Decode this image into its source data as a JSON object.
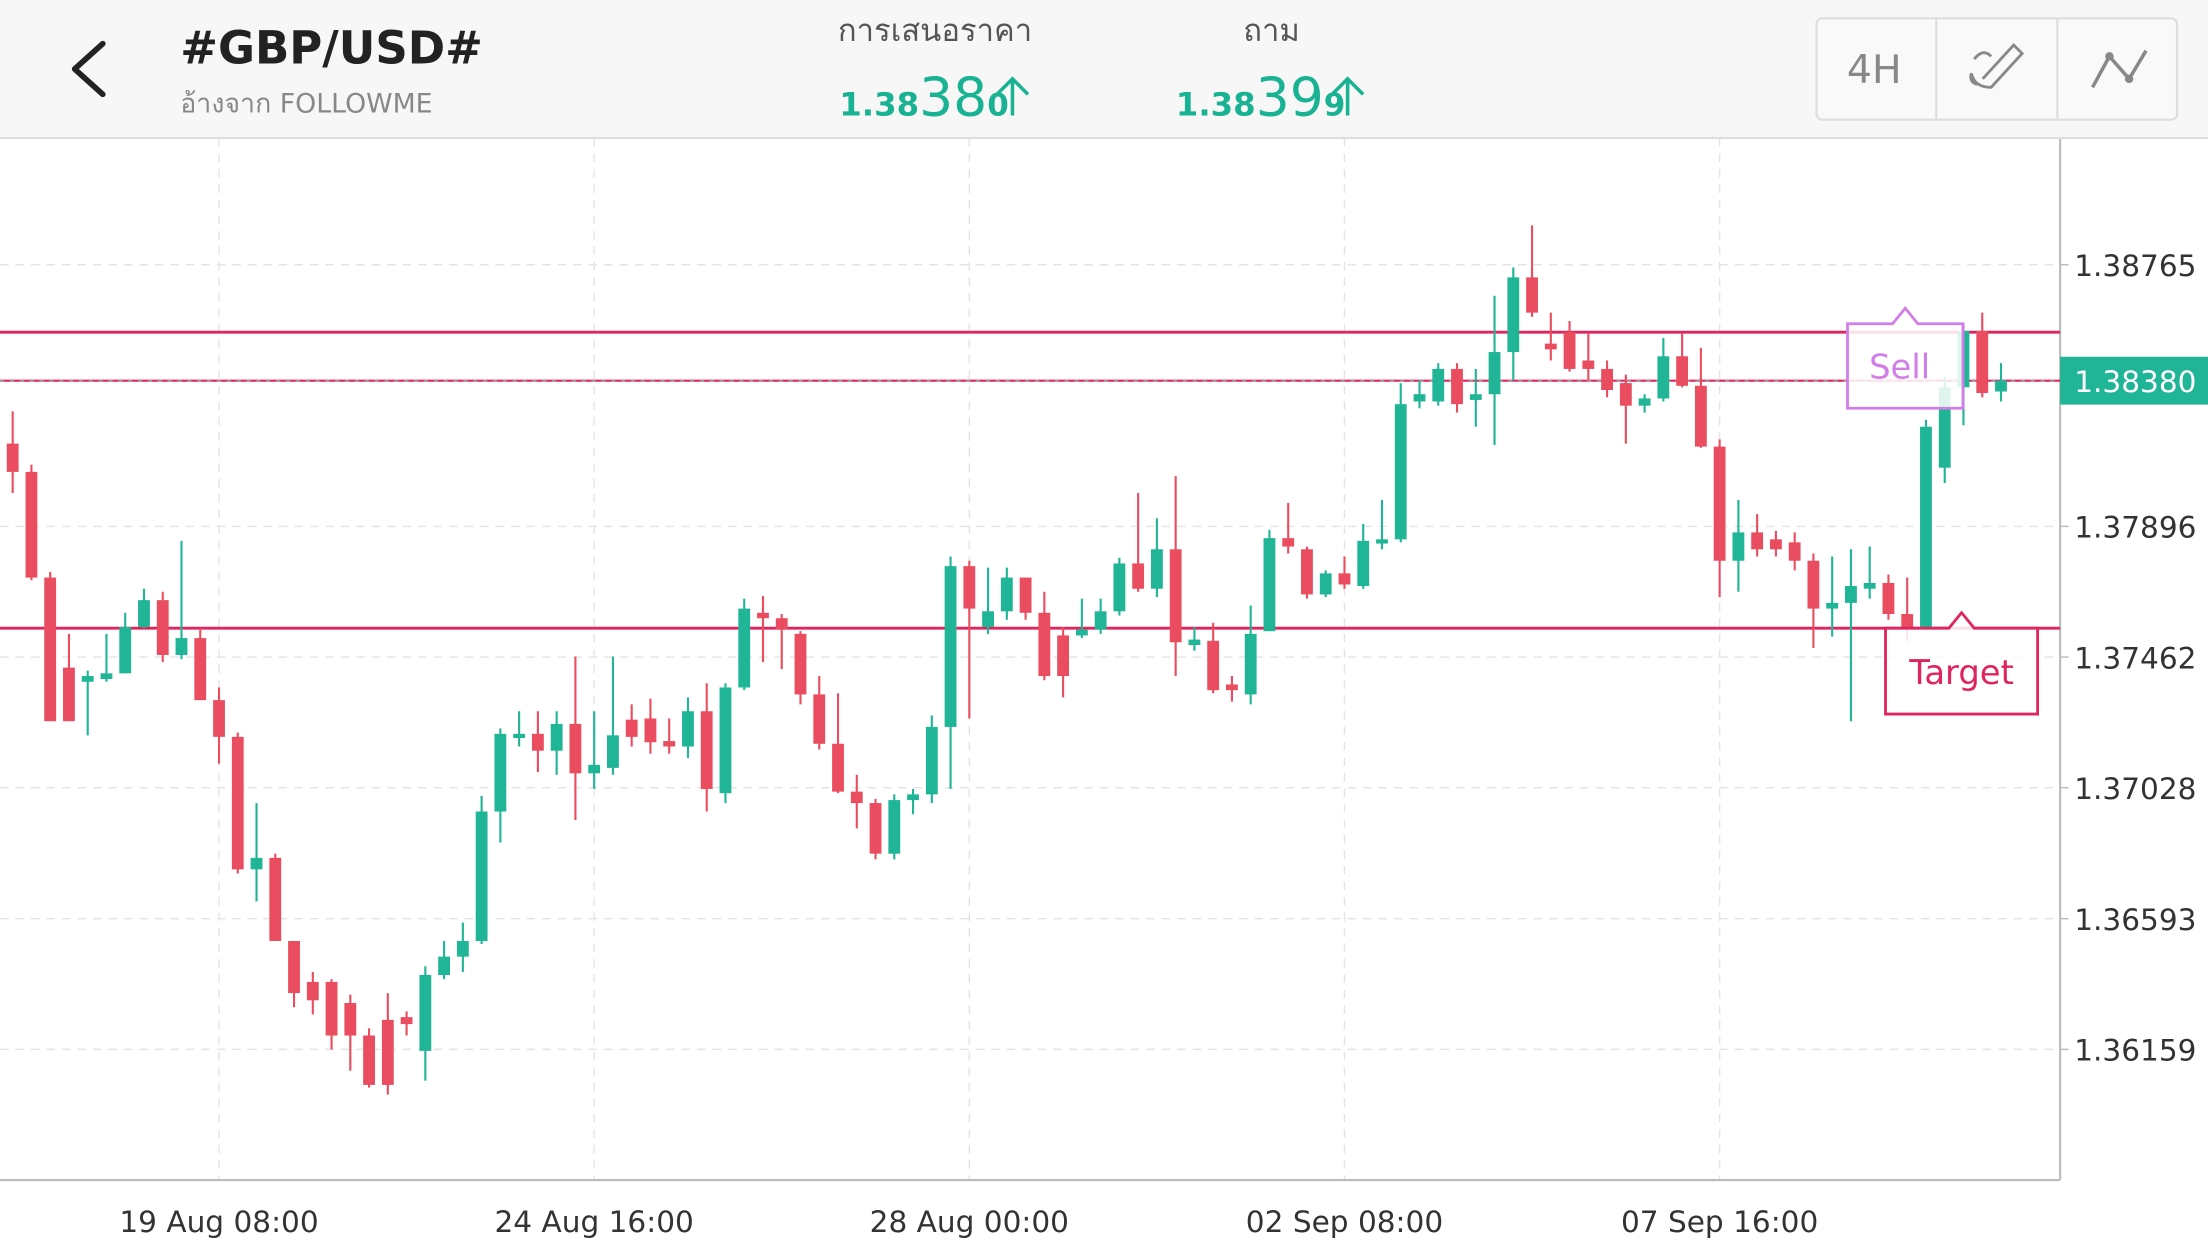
{
  "header": {
    "title": "#GBP/USD#",
    "subtitle": "อ้างจาก FOLLOWME",
    "bid": {
      "label": "การเสนอราคา",
      "price": [
        "1.38",
        "38",
        "0"
      ]
    },
    "ask": {
      "label": "ถาม",
      "price": [
        "1.38",
        "39",
        "9"
      ]
    },
    "timeframe": "4H"
  },
  "chart_data": {
    "type": "candlestick",
    "categories": [
      null,
      null,
      null,
      null,
      null,
      null,
      null,
      null,
      null,
      null,
      null,
      "19 Aug 08:00",
      null,
      null,
      null,
      null,
      null,
      null,
      null,
      null,
      null,
      null,
      null,
      null,
      null,
      null,
      null,
      null,
      null,
      null,
      null,
      "24 Aug 16:00",
      null,
      null,
      null,
      null,
      null,
      null,
      null,
      null,
      null,
      null,
      null,
      null,
      null,
      null,
      null,
      null,
      null,
      null,
      null,
      "28 Aug 00:00",
      null,
      null,
      null,
      null,
      null,
      null,
      null,
      null,
      null,
      null,
      null,
      null,
      null,
      null,
      null,
      null,
      null,
      null,
      null,
      "02 Sep 08:00",
      null,
      null,
      null,
      null,
      null,
      null,
      null,
      null,
      null,
      null,
      null,
      null,
      null,
      null,
      null,
      null,
      null,
      null,
      null,
      "07 Sep 16:00",
      null,
      null,
      null,
      null,
      null,
      null,
      null,
      null,
      null,
      null,
      null,
      null,
      null,
      null,
      null
    ],
    "open": [
      1.38171,
      1.38077,
      1.37726,
      1.37427,
      1.3738,
      1.37389,
      1.37408,
      1.37562,
      1.37651,
      1.37469,
      1.37525,
      1.37319,
      1.37197,
      1.36757,
      1.36795,
      1.36519,
      1.36383,
      1.36383,
      1.36313,
      1.36205,
      1.36257,
      1.36266,
      1.36154,
      1.36406,
      1.36467,
      1.36519,
      1.36949,
      1.37193,
      1.37207,
      1.37151,
      1.3724,
      1.37076,
      1.37094,
      1.37254,
      1.37258,
      1.37183,
      1.37165,
      1.37282,
      1.3701,
      1.37361,
      1.37609,
      1.37591,
      1.37539,
      1.37338,
      1.37174,
      1.37015,
      1.36977,
      1.36809,
      1.36987,
      1.37006,
      1.3723,
      1.37764,
      1.37562,
      1.37614,
      1.37726,
      1.37609,
      1.37534,
      1.37534,
      1.37553,
      1.37614,
      1.37773,
      1.37689,
      1.3782,
      1.37502,
      1.37516,
      1.37371,
      1.37338,
      1.37548,
      1.37857,
      1.3782,
      1.3767,
      1.3774,
      1.37698,
      1.37839,
      1.37853,
      1.38311,
      1.38311,
      1.38419,
      1.38316,
      1.38335,
      1.38475,
      1.38723,
      1.38503,
      1.38541,
      1.38447,
      1.38419,
      1.38372,
      1.38297,
      1.38321,
      1.38461,
      1.38363,
      1.38161,
      1.37782,
      1.37876,
      1.37853,
      1.37843,
      1.37782,
      1.37623,
      1.37642,
      1.37689,
      1.37708,
      1.37605,
      1.37558,
      1.38091,
      1.38358,
      1.38545,
      1.38344
    ],
    "high": [
      1.38278,
      1.38101,
      1.37745,
      1.37539,
      1.37417,
      1.37539,
      1.37609,
      1.37689,
      1.37679,
      1.37848,
      1.37558,
      1.37361,
      1.37211,
      1.36977,
      1.36809,
      1.36519,
      1.36416,
      1.36392,
      1.36341,
      1.36229,
      1.36346,
      1.36285,
      1.36435,
      1.36519,
      1.3658,
      1.37001,
      1.37225,
      1.37282,
      1.37282,
      1.37282,
      1.37464,
      1.37282,
      1.37464,
      1.37305,
      1.37324,
      1.37258,
      1.37328,
      1.37375,
      1.37375,
      1.37656,
      1.37665,
      1.37605,
      1.37548,
      1.37399,
      1.37342,
      1.37071,
      1.36991,
      1.37006,
      1.37024,
      1.37268,
      1.37796,
      1.37782,
      1.37759,
      1.37759,
      1.37726,
      1.37679,
      1.37562,
      1.37656,
      1.37656,
      1.37792,
      1.38007,
      1.37923,
      1.38063,
      1.37562,
      1.37576,
      1.37399,
      1.37633,
      1.37885,
      1.37974,
      1.37829,
      1.3775,
      1.37796,
      1.37904,
      1.37984,
      1.38372,
      1.38381,
      1.38438,
      1.38438,
      1.38419,
      1.38662,
      1.38756,
      1.38896,
      1.38606,
      1.38578,
      1.38536,
      1.38447,
      1.384,
      1.38335,
      1.38522,
      1.38536,
      1.38489,
      1.38185,
      1.37984,
      1.37937,
      1.37881,
      1.37876,
      1.37806,
      1.37796,
      1.3782,
      1.37829,
      1.37736,
      1.37726,
      1.3825,
      1.38391,
      1.38569,
      1.38606,
      1.38438
    ],
    "low": [
      1.38007,
      1.37717,
      1.37249,
      1.37249,
      1.37202,
      1.3738,
      1.37408,
      1.37558,
      1.37445,
      1.37455,
      1.37319,
      1.37108,
      1.36743,
      1.3665,
      1.36519,
      1.36299,
      1.36275,
      1.36158,
      1.36088,
      1.36032,
      1.36009,
      1.36205,
      1.36055,
      1.36392,
      1.36416,
      1.36509,
      1.36846,
      1.37165,
      1.3708,
      1.37071,
      1.36921,
      1.37024,
      1.37071,
      1.37165,
      1.37141,
      1.37141,
      1.37127,
      1.36949,
      1.36977,
      1.37352,
      1.37445,
      1.37422,
      1.37305,
      1.37155,
      1.3701,
      1.36893,
      1.3679,
      1.3679,
      1.3694,
      1.36977,
      1.37024,
      1.37258,
      1.37539,
      1.37586,
      1.37586,
      1.37385,
      1.37328,
      1.37525,
      1.37539,
      1.376,
      1.37679,
      1.37661,
      1.37399,
      1.37483,
      1.37342,
      1.37314,
      1.37305,
      1.37548,
      1.37806,
      1.37656,
      1.37661,
      1.37689,
      1.37689,
      1.3782,
      1.37843,
      1.38288,
      1.38297,
      1.38274,
      1.38227,
      1.38166,
      1.38381,
      1.38592,
      1.38447,
      1.3841,
      1.38381,
      1.38325,
      1.38171,
      1.38274,
      1.38311,
      1.38358,
      1.38157,
      1.37661,
      1.37679,
      1.37796,
      1.37796,
      1.3775,
      1.37492,
      1.3753,
      1.37249,
      1.37656,
      1.37586,
      1.37516,
      1.37548,
      1.3804,
      1.38232,
      1.38325,
      1.38311
    ],
    "close": [
      1.38077,
      1.37726,
      1.37249,
      1.37249,
      1.37399,
      1.37408,
      1.37562,
      1.37651,
      1.37469,
      1.37525,
      1.37319,
      1.37197,
      1.36757,
      1.36795,
      1.36519,
      1.36346,
      1.36322,
      1.36205,
      1.36205,
      1.36041,
      1.36041,
      1.36243,
      1.36406,
      1.36467,
      1.36519,
      1.36949,
      1.37207,
      1.37207,
      1.37151,
      1.3724,
      1.37076,
      1.37104,
      1.37202,
      1.37197,
      1.37179,
      1.37165,
      1.37282,
      1.37024,
      1.37361,
      1.37623,
      1.37591,
      1.37553,
      1.37338,
      1.37174,
      1.37015,
      1.36977,
      1.36809,
      1.36987,
      1.37006,
      1.3723,
      1.37764,
      1.37623,
      1.37614,
      1.37726,
      1.37609,
      1.37399,
      1.37399,
      1.37553,
      1.37614,
      1.37773,
      1.37689,
      1.3782,
      1.37511,
      1.3752,
      1.37352,
      1.37352,
      1.37539,
      1.37857,
      1.37829,
      1.3767,
      1.3774,
      1.37703,
      1.37848,
      1.37853,
      1.38302,
      1.38335,
      1.38419,
      1.38302,
      1.38335,
      1.38475,
      1.38723,
      1.38606,
      1.38484,
      1.38419,
      1.38419,
      1.38349,
      1.38297,
      1.38321,
      1.38461,
      1.38363,
      1.38161,
      1.37782,
      1.37876,
      1.3782,
      1.3782,
      1.37782,
      1.37623,
      1.37642,
      1.37698,
      1.37708,
      1.37605,
      1.37558,
      1.38227,
      1.38358,
      1.38545,
      1.38339,
      1.3838
    ],
    "up_color": "#1fb596",
    "down_color": "#e94d5f",
    "ylim": [
      1.35725,
      1.39186
    ],
    "yticks": [
      1.38765,
      1.37896,
      1.37462,
      1.37028,
      1.36593,
      1.36159
    ],
    "grid": true,
    "last_price": {
      "value": 1.3838,
      "label": "1.38380"
    },
    "annotations": [
      {
        "text": "Sell",
        "value": 1.38541,
        "color": "#d27ee8",
        "line_color": "#e0245e"
      },
      {
        "text": "Target",
        "value": 1.37558,
        "color": "#e0245e",
        "line_color": "#e0245e"
      }
    ]
  }
}
